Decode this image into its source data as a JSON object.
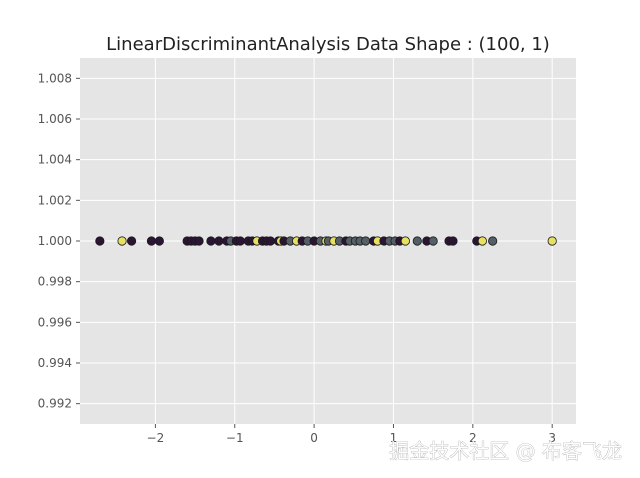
{
  "chart_data": {
    "type": "scatter",
    "title": "LinearDiscriminantAnalysis Data Shape : (100, 1)",
    "xlabel": "",
    "ylabel": "",
    "xlim": [
      -2.95,
      3.3
    ],
    "ylim": [
      0.991,
      1.009
    ],
    "x_ticks": [
      -2,
      -1,
      0,
      1,
      2,
      3
    ],
    "x_tick_labels": [
      "−2",
      "−1",
      "0",
      "1",
      "2",
      "3"
    ],
    "y_ticks": [
      0.992,
      0.994,
      0.996,
      0.998,
      1.0,
      1.002,
      1.004,
      1.006,
      1.008
    ],
    "y_tick_labels": [
      "0.992",
      "0.994",
      "0.996",
      "0.998",
      "1.000",
      "1.002",
      "1.004",
      "1.006",
      "1.008"
    ],
    "grid": true,
    "colors": {
      "background": "#e5e5e5",
      "grid": "#ffffff",
      "edge": "#1a1a1a",
      "classes": [
        "#2b1535",
        "#555f66",
        "#e8e063"
      ]
    },
    "points": [
      {
        "x": -2.7,
        "y": 1.0,
        "class": 0
      },
      {
        "x": -2.42,
        "y": 1.0,
        "class": 2
      },
      {
        "x": -2.3,
        "y": 1.0,
        "class": 0
      },
      {
        "x": -2.05,
        "y": 1.0,
        "class": 0
      },
      {
        "x": -1.95,
        "y": 1.0,
        "class": 0
      },
      {
        "x": -1.6,
        "y": 1.0,
        "class": 0
      },
      {
        "x": -1.55,
        "y": 1.0,
        "class": 0
      },
      {
        "x": -1.5,
        "y": 1.0,
        "class": 0
      },
      {
        "x": -1.45,
        "y": 1.0,
        "class": 0
      },
      {
        "x": -1.3,
        "y": 1.0,
        "class": 0
      },
      {
        "x": -1.2,
        "y": 1.0,
        "class": 0
      },
      {
        "x": -1.1,
        "y": 1.0,
        "class": 0
      },
      {
        "x": -1.05,
        "y": 1.0,
        "class": 1
      },
      {
        "x": -0.98,
        "y": 1.0,
        "class": 0
      },
      {
        "x": -0.93,
        "y": 1.0,
        "class": 0
      },
      {
        "x": -0.83,
        "y": 1.0,
        "class": 0
      },
      {
        "x": -0.78,
        "y": 1.0,
        "class": 0
      },
      {
        "x": -0.72,
        "y": 1.0,
        "class": 2
      },
      {
        "x": -0.65,
        "y": 1.0,
        "class": 0
      },
      {
        "x": -0.6,
        "y": 1.0,
        "class": 0
      },
      {
        "x": -0.55,
        "y": 1.0,
        "class": 0
      },
      {
        "x": -0.45,
        "y": 1.0,
        "class": 0
      },
      {
        "x": -0.42,
        "y": 1.0,
        "class": 2
      },
      {
        "x": -0.38,
        "y": 1.0,
        "class": 0
      },
      {
        "x": -0.3,
        "y": 1.0,
        "class": 1
      },
      {
        "x": -0.22,
        "y": 1.0,
        "class": 2
      },
      {
        "x": -0.15,
        "y": 1.0,
        "class": 0
      },
      {
        "x": -0.08,
        "y": 1.0,
        "class": 1
      },
      {
        "x": 0.0,
        "y": 1.0,
        "class": 0
      },
      {
        "x": 0.08,
        "y": 1.0,
        "class": 1
      },
      {
        "x": 0.15,
        "y": 1.0,
        "class": 2
      },
      {
        "x": 0.18,
        "y": 1.0,
        "class": 1
      },
      {
        "x": 0.25,
        "y": 1.0,
        "class": 2
      },
      {
        "x": 0.32,
        "y": 1.0,
        "class": 1
      },
      {
        "x": 0.4,
        "y": 1.0,
        "class": 0
      },
      {
        "x": 0.45,
        "y": 1.0,
        "class": 1
      },
      {
        "x": 0.52,
        "y": 1.0,
        "class": 1
      },
      {
        "x": 0.58,
        "y": 1.0,
        "class": 1
      },
      {
        "x": 0.65,
        "y": 1.0,
        "class": 1
      },
      {
        "x": 0.75,
        "y": 1.0,
        "class": 0
      },
      {
        "x": 0.8,
        "y": 1.0,
        "class": 2
      },
      {
        "x": 0.88,
        "y": 1.0,
        "class": 0
      },
      {
        "x": 0.95,
        "y": 1.0,
        "class": 1
      },
      {
        "x": 1.02,
        "y": 1.0,
        "class": 1
      },
      {
        "x": 1.08,
        "y": 1.0,
        "class": 0
      },
      {
        "x": 1.15,
        "y": 1.0,
        "class": 2
      },
      {
        "x": 1.3,
        "y": 1.0,
        "class": 1
      },
      {
        "x": 1.42,
        "y": 1.0,
        "class": 0
      },
      {
        "x": 1.5,
        "y": 1.0,
        "class": 1
      },
      {
        "x": 1.7,
        "y": 1.0,
        "class": 0
      },
      {
        "x": 1.75,
        "y": 1.0,
        "class": 0
      },
      {
        "x": 2.05,
        "y": 1.0,
        "class": 0
      },
      {
        "x": 2.12,
        "y": 1.0,
        "class": 2
      },
      {
        "x": 2.25,
        "y": 1.0,
        "class": 1
      },
      {
        "x": 3.0,
        "y": 1.0,
        "class": 2
      }
    ]
  },
  "watermark": "掘金技术社区 @ 布客飞龙"
}
